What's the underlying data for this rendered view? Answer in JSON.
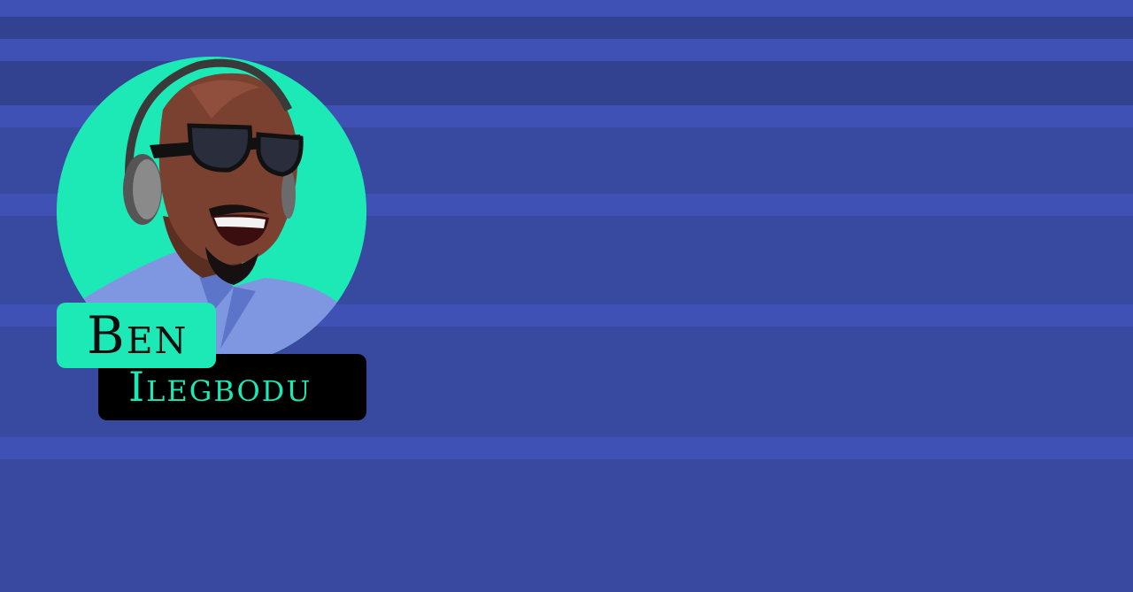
{
  "profile": {
    "first_name": "Ben",
    "last_name": "Ilegbodu",
    "avatar_icon": "person-avatar-illustration"
  },
  "colors": {
    "accent": "#1de9b6",
    "background": "#3949a0",
    "stripe": "#3f51b5",
    "name_box_dark": "#000000"
  }
}
